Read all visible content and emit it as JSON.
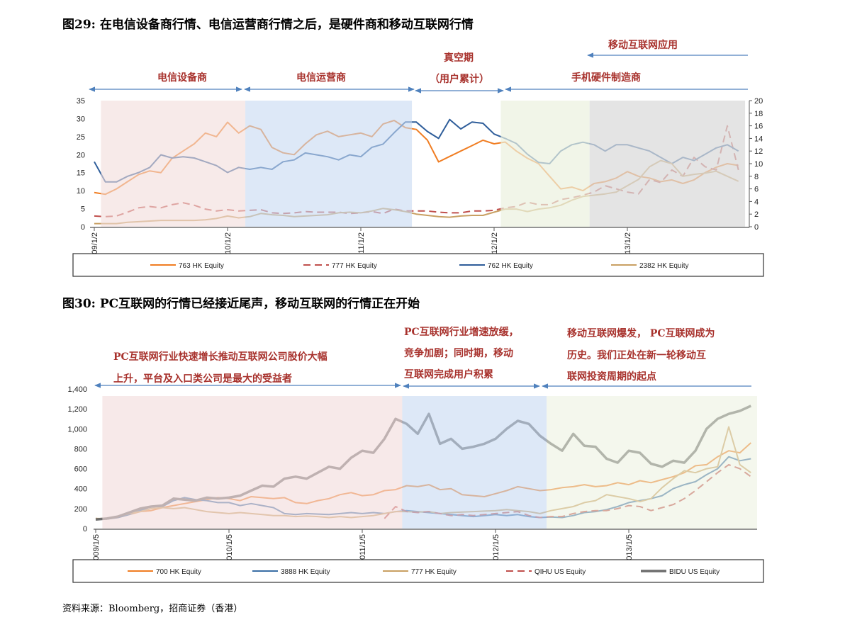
{
  "figure29": {
    "title": "图29: 在电信设备商行情、电信运营商行情之后，是硬件商和移动互联网行情",
    "phases": {
      "telecom_equipment": "电信设备商",
      "telecom_operators": "电信运营商",
      "vacuum_line1": "真空期",
      "vacuum_line2": "（用户累计）",
      "handset_makers": "手机硬件制造商",
      "mobile_apps": "移动互联网应用"
    }
  },
  "figure30": {
    "title": "图30: PC互联网的行情已经接近尾声，移动互联网的行情正在开始",
    "notes": {
      "block1": [
        "PC互联网行业快速增长推动互联网公司股价大幅",
        "上升，平台及入口类公司是最大的受益者"
      ],
      "block2": [
        "PC互联网行业增速放缓，",
        "竞争加剧；同时期，移动",
        "互联网完成用户积累"
      ],
      "block3": [
        "移动互联网爆发，  PC互联网成为",
        "历史。我们正处在新一轮移动互",
        "联网投资周期的起点"
      ]
    }
  },
  "source": "资料来源：Bloomberg，招商证券（香港）",
  "chart_data": [
    {
      "type": "line",
      "title": "",
      "left_ylim": [
        0,
        35
      ],
      "left_yticks": [
        "0",
        "5",
        "10",
        "15",
        "20",
        "25",
        "30",
        "35"
      ],
      "right_ylim": [
        0,
        20
      ],
      "right_yticks": [
        "0",
        "2",
        "4",
        "6",
        "8",
        "10",
        "12",
        "14",
        "16",
        "18",
        "20"
      ],
      "xticks": [
        "2009/1/2",
        "2010/1/2",
        "2011/1/2",
        "2012/1/2",
        "2013/1/2"
      ],
      "grid": false,
      "legend": "bottom",
      "shaded_periods": [
        {
          "label": "电信设备商",
          "from": "2009-01",
          "to": "2010-02",
          "color": "#f2dcdb"
        },
        {
          "label": "电信运营商",
          "from": "2010-02",
          "to": "2011-05",
          "color": "#c6d9f1"
        },
        {
          "label": "真空期",
          "from": "2011-05",
          "to": "2012-01",
          "color": "#ffffff"
        },
        {
          "label": "手机硬件制造商",
          "from": "2012-01",
          "to": "2012-09",
          "color": "#ebf1de"
        },
        {
          "label": "移动互联网应用",
          "from": "2012-09",
          "to": "2013-11",
          "color": "#d9d9d9"
        }
      ],
      "months": [
        "2009-01",
        "2009-02",
        "2009-03",
        "2009-04",
        "2009-05",
        "2009-06",
        "2009-07",
        "2009-08",
        "2009-09",
        "2009-10",
        "2009-11",
        "2009-12",
        "2010-01",
        "2010-02",
        "2010-03",
        "2010-04",
        "2010-05",
        "2010-06",
        "2010-07",
        "2010-08",
        "2010-09",
        "2010-10",
        "2010-11",
        "2010-12",
        "2011-01",
        "2011-02",
        "2011-03",
        "2011-04",
        "2011-05",
        "2011-06",
        "2011-07",
        "2011-08",
        "2011-09",
        "2011-10",
        "2011-11",
        "2011-12",
        "2012-01",
        "2012-02",
        "2012-03",
        "2012-04",
        "2012-05",
        "2012-06",
        "2012-07",
        "2012-08",
        "2012-09",
        "2012-10",
        "2012-11",
        "2012-12",
        "2013-01",
        "2013-02",
        "2013-03",
        "2013-04",
        "2013-05",
        "2013-06",
        "2013-07",
        "2013-08",
        "2013-09",
        "2013-10",
        "2013-11"
      ],
      "series": [
        {
          "name": "763 HK Equity",
          "axis": "left",
          "color": "#f07d22",
          "dash": false,
          "values": [
            9.5,
            9,
            10.5,
            12.5,
            14.5,
            15.5,
            15,
            19,
            21,
            23,
            26,
            25,
            29,
            26,
            28,
            27,
            22,
            20.5,
            20,
            23,
            25.5,
            26.5,
            25,
            25.5,
            26,
            25,
            28.5,
            29.5,
            27.5,
            27,
            24,
            18,
            19.5,
            21,
            22.5,
            24,
            23,
            23.5,
            21,
            19,
            17.5,
            14,
            10.5,
            11,
            10,
            12,
            12.5,
            13.5,
            15.3,
            14,
            13.5,
            12.5,
            13,
            12,
            13,
            15,
            16.5,
            17.5,
            17
          ]
        },
        {
          "name": "777 HK Equity",
          "axis": "right",
          "color": "#c0504d",
          "dash": true,
          "values": [
            1.7,
            1.6,
            1.7,
            2.3,
            3,
            3.2,
            3,
            3.5,
            3.8,
            3.4,
            2.8,
            2.5,
            2.7,
            2.5,
            2.6,
            2.7,
            2.2,
            2.1,
            2.2,
            2.4,
            2.3,
            2.3,
            2.3,
            2.1,
            2.2,
            2.4,
            2.1,
            2.8,
            2.5,
            2.5,
            2.5,
            2.3,
            2.2,
            2.2,
            2.5,
            2.5,
            2.6,
            3,
            3.2,
            3.9,
            3.5,
            3.5,
            4.3,
            4.6,
            5,
            5.5,
            6.5,
            6,
            5.5,
            5.2,
            7.5,
            7,
            9,
            8,
            11,
            9.5,
            9,
            16,
            9
          ]
        },
        {
          "name": "762 HK Equity",
          "axis": "right",
          "color": "#2e5d9a",
          "dash": false,
          "values": [
            10.3,
            7.1,
            7.1,
            8,
            8.6,
            9.4,
            11.4,
            10.9,
            11.1,
            10.9,
            10.3,
            9.7,
            8.6,
            9.4,
            9.1,
            9.4,
            9.1,
            10.3,
            10.6,
            11.7,
            11.4,
            11.1,
            10.6,
            11.4,
            11.1,
            12.6,
            13.1,
            14.9,
            16.6,
            16.6,
            15.1,
            14,
            17,
            15.5,
            16.6,
            16.4,
            14.7,
            14,
            13.2,
            11.5,
            10.2,
            10,
            12,
            13,
            13.4,
            13,
            12,
            13,
            13,
            12.5,
            12,
            11,
            10,
            11,
            10.5,
            11.5,
            12.5,
            13,
            12
          ]
        },
        {
          "name": "2382 HK Equity",
          "axis": "right",
          "color": "#c9a063",
          "dash": false,
          "values": [
            0.5,
            0.5,
            0.5,
            0.7,
            0.8,
            0.9,
            1,
            1,
            1,
            1,
            1.1,
            1.3,
            1.7,
            1.4,
            1.6,
            2.1,
            1.9,
            1.8,
            1.6,
            1.7,
            1.8,
            1.9,
            2.2,
            2.3,
            2.2,
            2.5,
            2.9,
            2.7,
            2.4,
            2,
            1.8,
            1.6,
            1.5,
            1.7,
            1.8,
            1.8,
            2.3,
            2.8,
            2.8,
            2.4,
            2.8,
            3,
            3.4,
            4.2,
            4.8,
            5,
            5.2,
            5.5,
            6.5,
            7.5,
            9.5,
            10.5,
            10,
            8,
            8.3,
            8.5,
            8.8,
            8,
            7.2
          ]
        }
      ]
    },
    {
      "type": "line",
      "title": "",
      "ylim": [
        0,
        1400
      ],
      "yticks": [
        "0",
        "200",
        "400",
        "600",
        "800",
        "1,000",
        "1,200",
        "1,400"
      ],
      "xticks": [
        "2009/1/5",
        "2010/1/5",
        "2011/1/5",
        "2012/1/5",
        "2013/1/5"
      ],
      "grid": false,
      "legend": "bottom",
      "shaded_periods": [
        {
          "from": "2009-01",
          "to": "2011-04",
          "color": "#f2dcdb"
        },
        {
          "from": "2011-04",
          "to": "2012-05",
          "color": "#c6d9f1"
        },
        {
          "from": "2012-05",
          "to": "2013-12",
          "color": "#ebf1de"
        }
      ],
      "months": [
        "2009-01",
        "2009-02",
        "2009-03",
        "2009-04",
        "2009-05",
        "2009-06",
        "2009-07",
        "2009-08",
        "2009-09",
        "2009-10",
        "2009-11",
        "2009-12",
        "2010-01",
        "2010-02",
        "2010-03",
        "2010-04",
        "2010-05",
        "2010-06",
        "2010-07",
        "2010-08",
        "2010-09",
        "2010-10",
        "2010-11",
        "2010-12",
        "2011-01",
        "2011-02",
        "2011-03",
        "2011-04",
        "2011-05",
        "2011-06",
        "2011-07",
        "2011-08",
        "2011-09",
        "2011-10",
        "2011-11",
        "2011-12",
        "2012-01",
        "2012-02",
        "2012-03",
        "2012-04",
        "2012-05",
        "2012-06",
        "2012-07",
        "2012-08",
        "2012-09",
        "2012-10",
        "2012-11",
        "2012-12",
        "2013-01",
        "2013-02",
        "2013-03",
        "2013-04",
        "2013-05",
        "2013-06",
        "2013-07",
        "2013-08",
        "2013-09",
        "2013-10",
        "2013-11",
        "2013-12"
      ],
      "series": [
        {
          "name": "700 HK Equity",
          "color": "#f07d22",
          "dash": false,
          "width": 2,
          "values": [
            100,
            95,
            110,
            140,
            170,
            180,
            210,
            230,
            250,
            270,
            290,
            310,
            300,
            280,
            320,
            310,
            300,
            310,
            260,
            250,
            280,
            300,
            340,
            360,
            330,
            340,
            380,
            390,
            430,
            420,
            440,
            390,
            400,
            340,
            330,
            320,
            350,
            380,
            420,
            400,
            380,
            390,
            410,
            420,
            440,
            420,
            430,
            460,
            440,
            480,
            460,
            490,
            520,
            560,
            630,
            640,
            720,
            780,
            760,
            860
          ]
        },
        {
          "name": "3888 HK Equity",
          "color": "#3a6ea5",
          "dash": false,
          "width": 2,
          "values": [
            100,
            95,
            110,
            140,
            180,
            220,
            220,
            280,
            310,
            290,
            280,
            260,
            260,
            230,
            250,
            230,
            210,
            150,
            140,
            150,
            145,
            140,
            150,
            160,
            150,
            160,
            150,
            170,
            180,
            170,
            160,
            150,
            140,
            130,
            120,
            130,
            140,
            130,
            140,
            120,
            110,
            115,
            110,
            130,
            160,
            170,
            190,
            220,
            260,
            280,
            300,
            330,
            400,
            440,
            470,
            540,
            600,
            720,
            680,
            700
          ]
        },
        {
          "name": "777 HK Equity",
          "color": "#c9a063",
          "dash": false,
          "width": 2,
          "values": [
            100,
            100,
            120,
            150,
            170,
            200,
            210,
            200,
            210,
            190,
            170,
            160,
            150,
            160,
            150,
            140,
            130,
            130,
            120,
            125,
            120,
            110,
            120,
            110,
            120,
            130,
            150,
            170,
            170,
            165,
            170,
            150,
            160,
            165,
            170,
            175,
            180,
            190,
            180,
            170,
            150,
            180,
            200,
            220,
            260,
            280,
            340,
            320,
            300,
            270,
            300,
            410,
            500,
            580,
            560,
            600,
            620,
            1020,
            640,
            560
          ]
        },
        {
          "name": "QIHU US Equity",
          "color": "#c0504d",
          "dash": true,
          "width": 2,
          "values": [
            null,
            null,
            null,
            null,
            null,
            null,
            null,
            null,
            null,
            null,
            null,
            null,
            null,
            null,
            null,
            null,
            null,
            null,
            null,
            null,
            null,
            null,
            null,
            null,
            null,
            null,
            100,
            220,
            170,
            160,
            170,
            150,
            130,
            140,
            130,
            140,
            150,
            160,
            170,
            130,
            110,
            120,
            120,
            150,
            170,
            180,
            180,
            200,
            230,
            220,
            180,
            210,
            240,
            300,
            380,
            470,
            560,
            640,
            600,
            520
          ]
        },
        {
          "name": "BIDU US Equity",
          "color": "#6d6d6d",
          "dash": false,
          "width": 3.5,
          "values": [
            90,
            100,
            120,
            160,
            200,
            220,
            230,
            300,
            290,
            280,
            310,
            300,
            310,
            330,
            380,
            430,
            420,
            500,
            520,
            500,
            560,
            620,
            600,
            710,
            780,
            760,
            900,
            1100,
            1050,
            950,
            1150,
            850,
            900,
            800,
            820,
            850,
            900,
            1000,
            1080,
            1050,
            930,
            850,
            780,
            950,
            830,
            820,
            700,
            660,
            780,
            760,
            650,
            620,
            680,
            660,
            780,
            1000,
            1100,
            1150,
            1180,
            1230
          ]
        }
      ]
    }
  ]
}
